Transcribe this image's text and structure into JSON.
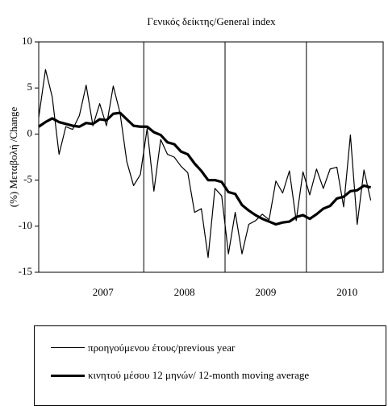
{
  "chart_data": {
    "type": "line",
    "title": "Γενικός δείκτης/General index",
    "y_label": "(%) Μεταβολή /Change",
    "categories": [
      null,
      null,
      null,
      null,
      null,
      null,
      null,
      null,
      null,
      "2007",
      null,
      null,
      null,
      null,
      null,
      null,
      null,
      null,
      null,
      null,
      null,
      "2008",
      null,
      null,
      null,
      null,
      null,
      null,
      null,
      null,
      null,
      null,
      null,
      "2009",
      null,
      null,
      null,
      null,
      null,
      null,
      null,
      null,
      null,
      null,
      null,
      "2010",
      null,
      null,
      null,
      null
    ],
    "series": [
      {
        "name": "προηγούμενου έτους/previous year",
        "color": "#000000",
        "width": 1.2,
        "values": [
          1.8,
          7,
          4,
          -2.2,
          0.8,
          0.5,
          2,
          5.3,
          0.9,
          3.3,
          0.9,
          5.2,
          2.3,
          -3,
          -5.6,
          -4.4,
          0.6,
          -6.2,
          -0.6,
          -2.2,
          -2.5,
          -3.5,
          -4.2,
          -8.5,
          -8.1,
          -13.4,
          -5.9,
          -6.7,
          -13,
          -8.5,
          -13,
          -9.8,
          -9.4,
          -8.7,
          -9.3,
          -5.1,
          -6.4,
          -4,
          -9.4,
          -4.1,
          -6.6,
          -3.8,
          -5.9,
          -3.8,
          -3.6,
          -7.9,
          -0.1,
          -9.8,
          -3.9,
          -7.2
        ]
      },
      {
        "name": "κινητού μέσου 12 μηνών/ 12-month moving average",
        "color": "#000000",
        "width": 3.2,
        "values": [
          0.8,
          1.3,
          1.7,
          1.3,
          1.1,
          0.9,
          0.8,
          1.2,
          1.1,
          1.6,
          1.5,
          2.2,
          2.3,
          1.6,
          0.9,
          0.8,
          0.8,
          0.2,
          -0.1,
          -0.9,
          -1.1,
          -1.9,
          -2.2,
          -3.2,
          -4,
          -5,
          -5,
          -5.2,
          -6.3,
          -6.5,
          -7.7,
          -8.3,
          -8.8,
          -9.2,
          -9.5,
          -9.8,
          -9.6,
          -9.5,
          -9,
          -8.8,
          -9.2,
          -8.7,
          -8.1,
          -7.8,
          -7,
          -6.8,
          -6.2,
          -6.1,
          -5.6,
          -5.8
        ]
      }
    ],
    "ylim": [
      -15,
      10
    ],
    "yticks": [
      -15,
      -10,
      -5,
      0,
      5,
      10
    ]
  }
}
